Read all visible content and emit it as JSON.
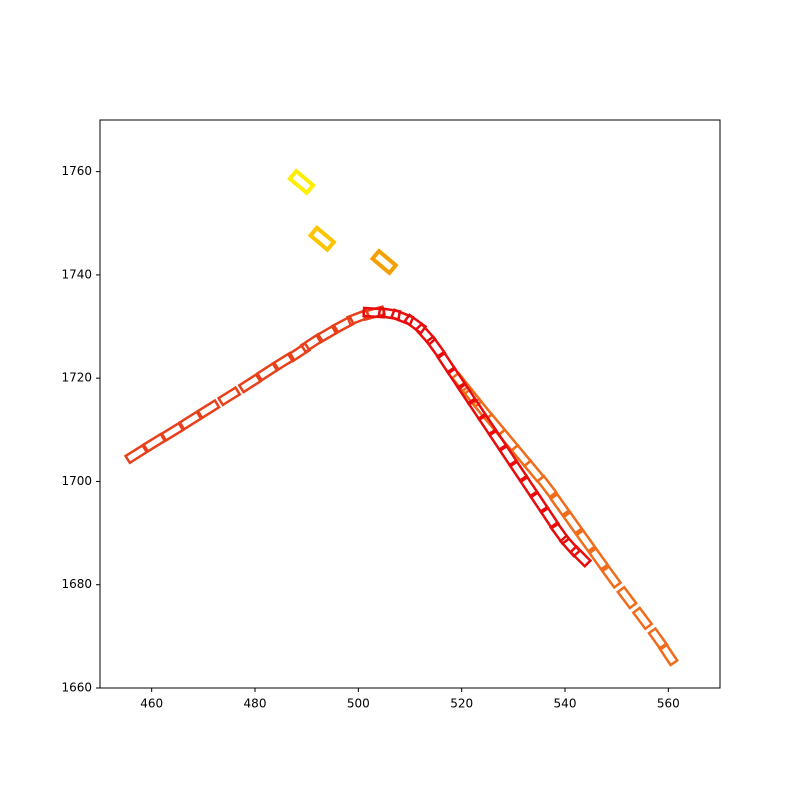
{
  "chart_data": {
    "type": "scatter",
    "xlim": [
      450,
      570
    ],
    "xticks": [
      460,
      480,
      500,
      520,
      540,
      560
    ],
    "ylim": [
      1660,
      1770
    ],
    "yticks": [
      1660,
      1680,
      1700,
      1720,
      1740,
      1760
    ],
    "series": [
      {
        "color": "#e8401a",
        "x": [
          457,
          460.5,
          464,
          467.5,
          471,
          475,
          479,
          482.5,
          485.5,
          488.5,
          491,
          494,
          497,
          500,
          503
        ],
        "values": [
          1705.3,
          1707.5,
          1709.6,
          1711.8,
          1714,
          1716.5,
          1719,
          1721.3,
          1723.2,
          1725,
          1726.8,
          1728.6,
          1730.3,
          1731.8,
          1732.6
        ]
      },
      {
        "color": "#f06c1a",
        "x": [
          520,
          522,
          524,
          526.5,
          529,
          531.5,
          534,
          536.5,
          539,
          541.5,
          544,
          546.5,
          549,
          552,
          555,
          558,
          560
        ],
        "values": [
          1719,
          1716.5,
          1714,
          1711,
          1708,
          1705,
          1702,
          1699,
          1695.5,
          1692,
          1688.5,
          1685,
          1681.5,
          1677.5,
          1673.5,
          1669.5,
          1666.5
        ]
      },
      {
        "color": "#e80c0c",
        "x": [
          503,
          506,
          508.5,
          511,
          513,
          515,
          517,
          519,
          521,
          523,
          525,
          527,
          529,
          531,
          533,
          535,
          537,
          539,
          541,
          543
        ],
        "values": [
          1732.7,
          1732.5,
          1731.8,
          1730.5,
          1728.5,
          1726,
          1723,
          1720,
          1717,
          1714,
          1711,
          1708,
          1705,
          1702,
          1699,
          1696,
          1693,
          1690,
          1687.5,
          1685.5
        ]
      },
      {
        "color": "#ffee00",
        "x": [
          489
        ],
        "values": [
          1758
        ]
      },
      {
        "color": "#ffc400",
        "x": [
          493
        ],
        "values": [
          1747
        ]
      },
      {
        "color": "#f4a000",
        "x": [
          505
        ],
        "values": [
          1742.5
        ]
      }
    ]
  }
}
